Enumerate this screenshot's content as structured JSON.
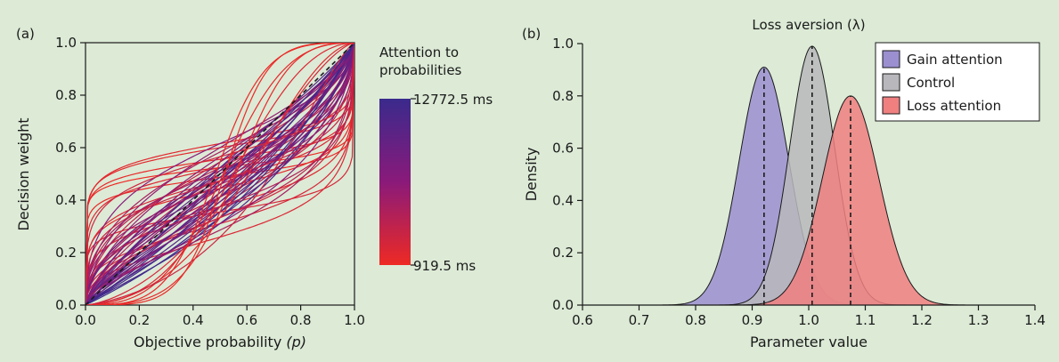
{
  "figure": {
    "background": "#dcead6",
    "panel_a_label": "(a)",
    "panel_b_label": "(b)"
  },
  "chart_data": [
    {
      "type": "line",
      "panel": "(a)",
      "xlabel": "Objective probability",
      "xlabel_symbol": "(p)",
      "ylabel": "Decision weight",
      "xlim": [
        0,
        1
      ],
      "ylim": [
        0,
        1
      ],
      "x_ticks": [
        "0.0",
        "0.2",
        "0.4",
        "0.6",
        "0.8",
        "1.0"
      ],
      "y_ticks": [
        "0.0",
        "0.2",
        "0.4",
        "0.6",
        "0.8",
        "1.0"
      ],
      "grid": false,
      "function": "probability weighting curves w(p) = d·p^g / (d·p^g + (1-p)^g)",
      "identity_line": {
        "style": "dashed",
        "color": "#000000",
        "x": [
          0,
          1
        ],
        "y": [
          0,
          1
        ]
      },
      "colorbar": {
        "title_line1": "Attention to",
        "title_line2": "probabilities",
        "max_label": "12772.5 ms",
        "min_label": "919.5 ms",
        "color_high": "#3a2a8c",
        "color_mid": "#8a1a7a",
        "color_low": "#ee2a24"
      },
      "series": [
        {
          "g": 0.12,
          "d": 1.1,
          "t": 0.0
        },
        {
          "g": 0.15,
          "d": 1.25,
          "t": 0.03
        },
        {
          "g": 0.18,
          "d": 1.5,
          "t": 0.05
        },
        {
          "g": 0.14,
          "d": 0.95,
          "t": 0.02
        },
        {
          "g": 0.2,
          "d": 1.6,
          "t": 0.06
        },
        {
          "g": 0.22,
          "d": 1.1,
          "t": 0.08
        },
        {
          "g": 0.25,
          "d": 0.8,
          "t": 0.04
        },
        {
          "g": 0.3,
          "d": 0.6,
          "t": 0.07
        },
        {
          "g": 0.28,
          "d": 0.9,
          "t": 0.1
        },
        {
          "g": 0.35,
          "d": 0.45,
          "t": 0.12
        },
        {
          "g": 0.4,
          "d": 0.35,
          "t": 0.09
        },
        {
          "g": 0.18,
          "d": 0.55,
          "t": 0.11
        },
        {
          "g": 0.45,
          "d": 0.5,
          "t": 0.15
        },
        {
          "g": 0.5,
          "d": 0.7,
          "t": 0.18
        },
        {
          "g": 0.55,
          "d": 0.9,
          "t": 0.2
        },
        {
          "g": 0.6,
          "d": 1.2,
          "t": 0.22
        },
        {
          "g": 0.5,
          "d": 1.1,
          "t": 0.25
        },
        {
          "g": 0.7,
          "d": 0.8,
          "t": 0.28
        },
        {
          "g": 0.65,
          "d": 0.6,
          "t": 0.3
        },
        {
          "g": 0.75,
          "d": 1.0,
          "t": 0.32
        },
        {
          "g": 0.55,
          "d": 1.4,
          "t": 0.35
        },
        {
          "g": 0.45,
          "d": 1.05,
          "t": 0.38
        },
        {
          "g": 0.8,
          "d": 0.75,
          "t": 0.4
        },
        {
          "g": 0.6,
          "d": 0.95,
          "t": 0.42
        },
        {
          "g": 0.7,
          "d": 1.3,
          "t": 0.45
        },
        {
          "g": 0.85,
          "d": 0.9,
          "t": 0.48
        },
        {
          "g": 0.5,
          "d": 1.6,
          "t": 0.5
        },
        {
          "g": 0.65,
          "d": 0.7,
          "t": 0.52
        },
        {
          "g": 0.75,
          "d": 1.1,
          "t": 0.55
        },
        {
          "g": 0.9,
          "d": 0.65,
          "t": 0.58
        },
        {
          "g": 0.55,
          "d": 0.8,
          "t": 0.6
        },
        {
          "g": 0.8,
          "d": 1.2,
          "t": 0.62
        },
        {
          "g": 0.7,
          "d": 0.55,
          "t": 0.65
        },
        {
          "g": 0.6,
          "d": 1.0,
          "t": 0.68
        },
        {
          "g": 0.85,
          "d": 1.05,
          "t": 0.7
        },
        {
          "g": 0.9,
          "d": 0.85,
          "t": 0.72
        },
        {
          "g": 0.75,
          "d": 0.65,
          "t": 0.75
        },
        {
          "g": 0.95,
          "d": 0.75,
          "t": 0.78
        },
        {
          "g": 0.8,
          "d": 0.95,
          "t": 0.8
        },
        {
          "g": 0.9,
          "d": 1.1,
          "t": 0.83
        },
        {
          "g": 0.95,
          "d": 0.6,
          "t": 0.86
        },
        {
          "g": 0.85,
          "d": 0.5,
          "t": 0.88
        },
        {
          "g": 0.9,
          "d": 0.45,
          "t": 0.9
        },
        {
          "g": 0.95,
          "d": 0.9,
          "t": 0.93
        },
        {
          "g": 1.0,
          "d": 0.7,
          "t": 0.95
        },
        {
          "g": 0.95,
          "d": 0.55,
          "t": 0.97
        },
        {
          "g": 1.0,
          "d": 0.5,
          "t": 1.0
        },
        {
          "g": 0.6,
          "d": 0.4,
          "t": 0.35
        },
        {
          "g": 0.5,
          "d": 0.5,
          "t": 0.25
        },
        {
          "g": 0.7,
          "d": 0.45,
          "t": 0.5
        },
        {
          "g": 0.4,
          "d": 0.6,
          "t": 0.3
        },
        {
          "g": 0.45,
          "d": 0.85,
          "t": 0.42
        },
        {
          "g": 0.65,
          "d": 1.5,
          "t": 0.45
        },
        {
          "g": 0.35,
          "d": 0.9,
          "t": 0.2
        },
        {
          "g": 0.3,
          "d": 1.3,
          "t": 0.15
        },
        {
          "g": 0.8,
          "d": 0.6,
          "t": 0.66
        },
        {
          "g": 0.75,
          "d": 0.85,
          "t": 0.58
        },
        {
          "g": 0.85,
          "d": 0.7,
          "t": 0.74
        },
        {
          "g": 2.2,
          "d": 0.9,
          "t": 0.04
        },
        {
          "g": 1.8,
          "d": 0.7,
          "t": 0.08
        },
        {
          "g": 1.6,
          "d": 0.5,
          "t": 0.06
        },
        {
          "g": 2.8,
          "d": 1.2,
          "t": 0.02
        },
        {
          "g": 3.2,
          "d": 0.8,
          "t": 0.01
        },
        {
          "g": 1.4,
          "d": 0.6,
          "t": 0.12
        },
        {
          "g": 1.3,
          "d": 0.35,
          "t": 0.16
        },
        {
          "g": 2.5,
          "d": 0.55,
          "t": 0.03
        }
      ]
    },
    {
      "type": "area",
      "panel": "(b)",
      "title": "Loss aversion (λ)",
      "xlabel": "Parameter value",
      "ylabel": "Density",
      "xlim": [
        0.6,
        1.4
      ],
      "ylim": [
        0,
        1
      ],
      "x_ticks": [
        "0.6",
        "0.7",
        "0.8",
        "0.9",
        "1.0",
        "1.1",
        "1.2",
        "1.3",
        "1.4"
      ],
      "y_ticks": [
        "0.0",
        "0.2",
        "0.4",
        "0.6",
        "0.8",
        "1.0"
      ],
      "grid": false,
      "legend_position": "top-right",
      "series": [
        {
          "name": "Gain attention",
          "color": "#9b8fd0",
          "mean": 0.921,
          "sd": 0.044,
          "peak": 0.91,
          "x_range": [
            0.7,
            1.15
          ]
        },
        {
          "name": "Control",
          "color": "#b8b8bc",
          "mean": 1.006,
          "sd": 0.04,
          "peak": 0.99,
          "x_range": [
            0.8,
            1.23
          ]
        },
        {
          "name": "Loss attention",
          "color": "#f07f80",
          "mean": 1.074,
          "sd": 0.05,
          "peak": 0.8,
          "x_range": [
            0.82,
            1.34
          ]
        }
      ]
    }
  ]
}
